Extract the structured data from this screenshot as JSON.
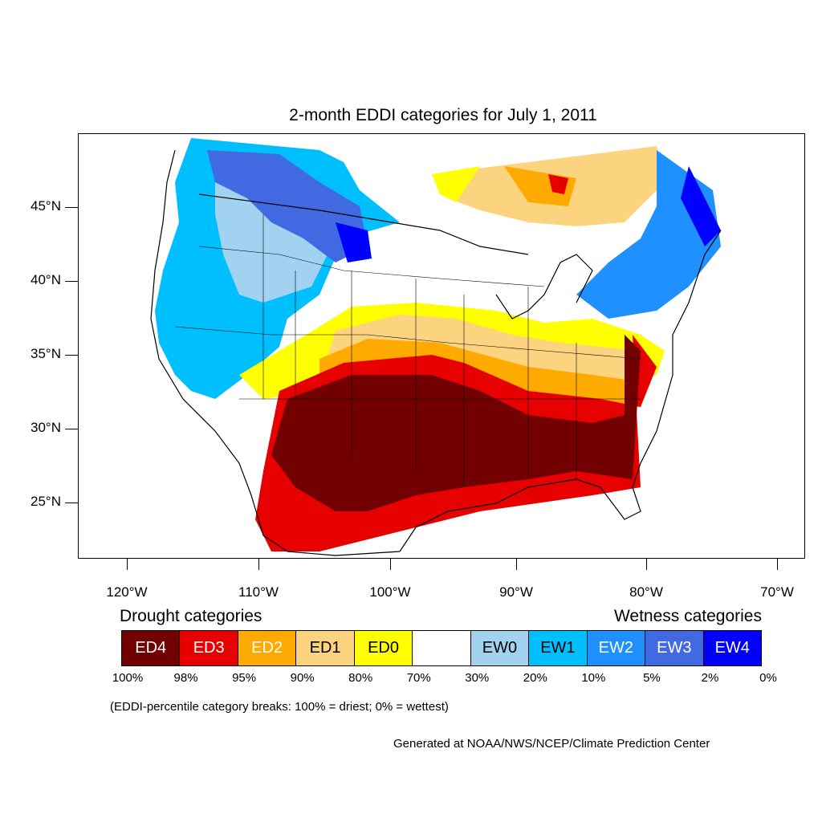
{
  "title": "2-month EDDI categories for July 1, 2011",
  "lat_ticks": [
    "45°N",
    "40°N",
    "35°N",
    "30°N",
    "25°N"
  ],
  "lon_ticks": [
    "120°W",
    "110°W",
    "100°W",
    "90°W",
    "80°W",
    "70°W"
  ],
  "legend": {
    "drought_label": "Drought categories",
    "wetness_label": "Wetness categories",
    "categories": [
      {
        "label": "ED4",
        "color": "#730000",
        "text_color": "#ffffff"
      },
      {
        "label": "ED3",
        "color": "#e60000",
        "text_color": "#ffffff"
      },
      {
        "label": "ED2",
        "color": "#ffaa00",
        "text_color": "#ffffff"
      },
      {
        "label": "ED1",
        "color": "#fcd37f",
        "text_color": "#000000"
      },
      {
        "label": "ED0",
        "color": "#ffff00",
        "text_color": "#000000"
      },
      {
        "label": "",
        "color": "#ffffff",
        "text_color": "#000000"
      },
      {
        "label": "EW0",
        "color": "#a1d2f0",
        "text_color": "#000000"
      },
      {
        "label": "EW1",
        "color": "#00bfff",
        "text_color": "#000000"
      },
      {
        "label": "EW2",
        "color": "#1e90ff",
        "text_color": "#ffffff"
      },
      {
        "label": "EW3",
        "color": "#4169e1",
        "text_color": "#ffffff"
      },
      {
        "label": "EW4",
        "color": "#0000ff",
        "text_color": "#ffffff"
      }
    ],
    "breaks": [
      "100%",
      "98%",
      "95%",
      "90%",
      "80%",
      "70%",
      "30%",
      "20%",
      "10%",
      "5%",
      "2%",
      "0%"
    ]
  },
  "note": "(EDDI-percentile category breaks: 100% = driest; 0% = wettest)",
  "credit": "Generated at NOAA/NWS/NCEP/Climate Prediction Center"
}
